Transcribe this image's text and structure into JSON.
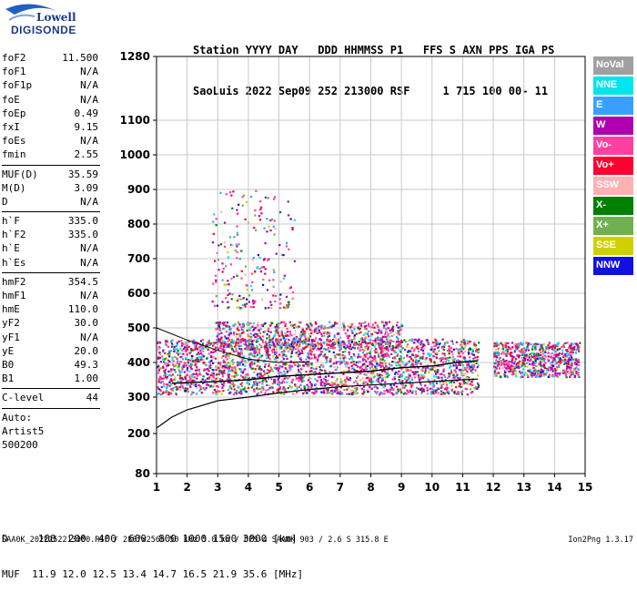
{
  "logo": {
    "line1": "Lowell",
    "line2": "DIGISONDE"
  },
  "header": {
    "row1": "Station YYYY DAY   DDD HHMMSS P1   FFS S AXN PPS IGA PS",
    "row2": "SaoLuis 2022 Sep09 252 213000 RSF     1 715 100 00- 11"
  },
  "params": [
    {
      "label": "foF2",
      "value": "11.500"
    },
    {
      "label": "foF1",
      "value": "N/A"
    },
    {
      "label": "foF1p",
      "value": "N/A"
    },
    {
      "label": "foE",
      "value": "N/A"
    },
    {
      "label": "foEp",
      "value": "0.49"
    },
    {
      "label": "fxI",
      "value": "9.15"
    },
    {
      "label": "foEs",
      "value": "N/A"
    },
    {
      "label": "fmin",
      "value": "2.55"
    },
    {
      "sep": true
    },
    {
      "label": "MUF(D)",
      "value": "35.59"
    },
    {
      "label": "M(D)",
      "value": "3.09"
    },
    {
      "label": "D",
      "value": "N/A"
    },
    {
      "sep": true
    },
    {
      "label": "h`F",
      "value": "335.0"
    },
    {
      "label": "h`F2",
      "value": "335.0"
    },
    {
      "label": "h`E",
      "value": "N/A"
    },
    {
      "label": "h`Es",
      "value": "N/A"
    },
    {
      "sep": true
    },
    {
      "label": "hmF2",
      "value": "354.5"
    },
    {
      "label": "hmF1",
      "value": "N/A"
    },
    {
      "label": "hmE",
      "value": "110.0"
    },
    {
      "label": "yF2",
      "value": "30.0"
    },
    {
      "label": "yF1",
      "value": "N/A"
    },
    {
      "label": "yE",
      "value": "20.0"
    },
    {
      "label": "B0",
      "value": "49.3"
    },
    {
      "label": "B1",
      "value": "1.00"
    },
    {
      "sep": true
    },
    {
      "label": "C-level",
      "value": "44"
    },
    {
      "sep": true
    },
    {
      "text": "Auto:"
    },
    {
      "text": "Artist5"
    },
    {
      "text": "500200"
    }
  ],
  "legend": [
    {
      "label": "NoVal",
      "color": "#a0a0a0"
    },
    {
      "label": "NNE",
      "color": "#00e5ee"
    },
    {
      "label": "E",
      "color": "#3aa0ff"
    },
    {
      "label": "W",
      "color": "#b000b0"
    },
    {
      "label": "Vo-",
      "color": "#ff40a0"
    },
    {
      "label": "Vo+",
      "color": "#ff0030"
    },
    {
      "label": "SSW",
      "color": "#ffb0b0"
    },
    {
      "label": "X-",
      "color": "#008000"
    },
    {
      "label": "X+",
      "color": "#70b050"
    },
    {
      "label": "SSE",
      "color": "#d0d000"
    },
    {
      "label": "NNW",
      "color": "#1010e0"
    }
  ],
  "muf_table": {
    "d_row": "D     100  200  400  600  800 1000 1500 3000 [km]",
    "muf_row": "MUF  11.9 12.0 12.5 13.4 14.7 16.5 21.9 35.6 [MHz]"
  },
  "footer": "SAA0K_2022252213000.RSF / 280fx256h 50 kHz 5.0 km / DPS-4 SAA0K 903 / 2.6 S 315.8 E",
  "version": "Ion2Png 1.3.17",
  "chart_data": {
    "type": "scatter",
    "x_ticks": [
      "1",
      "2",
      "3",
      "4",
      "5",
      "6",
      "7",
      "8",
      "9",
      "10",
      "11",
      "12",
      "13",
      "14",
      "15"
    ],
    "y_ticks": [
      "80",
      "200",
      "300",
      "400",
      "500",
      "600",
      "700",
      "800",
      "900",
      "1000",
      "1100",
      "1280"
    ],
    "x_range": [
      1,
      15
    ],
    "y_scale": "nonlinear (virtual height, km)",
    "y_range": [
      80,
      1280
    ],
    "clusters": [
      {
        "name": "F-trace",
        "xmin": 1.0,
        "xmax": 11.5,
        "ymin": 310,
        "ymax": 470,
        "density": "high"
      },
      {
        "name": "F-trace-2nd",
        "xmin": 2.9,
        "xmax": 9.0,
        "ymin": 440,
        "ymax": 520,
        "density": "medium"
      },
      {
        "name": "high-echoes",
        "xmin": 2.8,
        "xmax": 5.5,
        "ymin": 560,
        "ymax": 900,
        "density": "low"
      },
      {
        "name": "spread",
        "xmin": 12.0,
        "xmax": 14.8,
        "ymin": 360,
        "ymax": 460,
        "density": "medium"
      }
    ],
    "profile_curve": [
      [
        1,
        215
      ],
      [
        1.5,
        245
      ],
      [
        2,
        265
      ],
      [
        3,
        290
      ],
      [
        4,
        300
      ],
      [
        5,
        312
      ],
      [
        6,
        322
      ],
      [
        7,
        330
      ],
      [
        8,
        335
      ],
      [
        9,
        340
      ],
      [
        10,
        345
      ],
      [
        11,
        350
      ],
      [
        11.5,
        352
      ]
    ],
    "o_trace": [
      [
        1.5,
        340
      ],
      [
        3,
        345
      ],
      [
        4,
        350
      ],
      [
        5,
        360
      ],
      [
        6,
        365
      ],
      [
        7,
        370
      ],
      [
        8,
        375
      ],
      [
        9,
        385
      ],
      [
        10,
        390
      ],
      [
        10.8,
        400
      ],
      [
        11.5,
        405
      ]
    ],
    "o_trace_upper": [
      [
        1,
        500
      ],
      [
        2,
        465
      ],
      [
        3,
        435
      ],
      [
        4,
        410
      ],
      [
        5,
        400
      ],
      [
        6,
        402
      ]
    ]
  }
}
